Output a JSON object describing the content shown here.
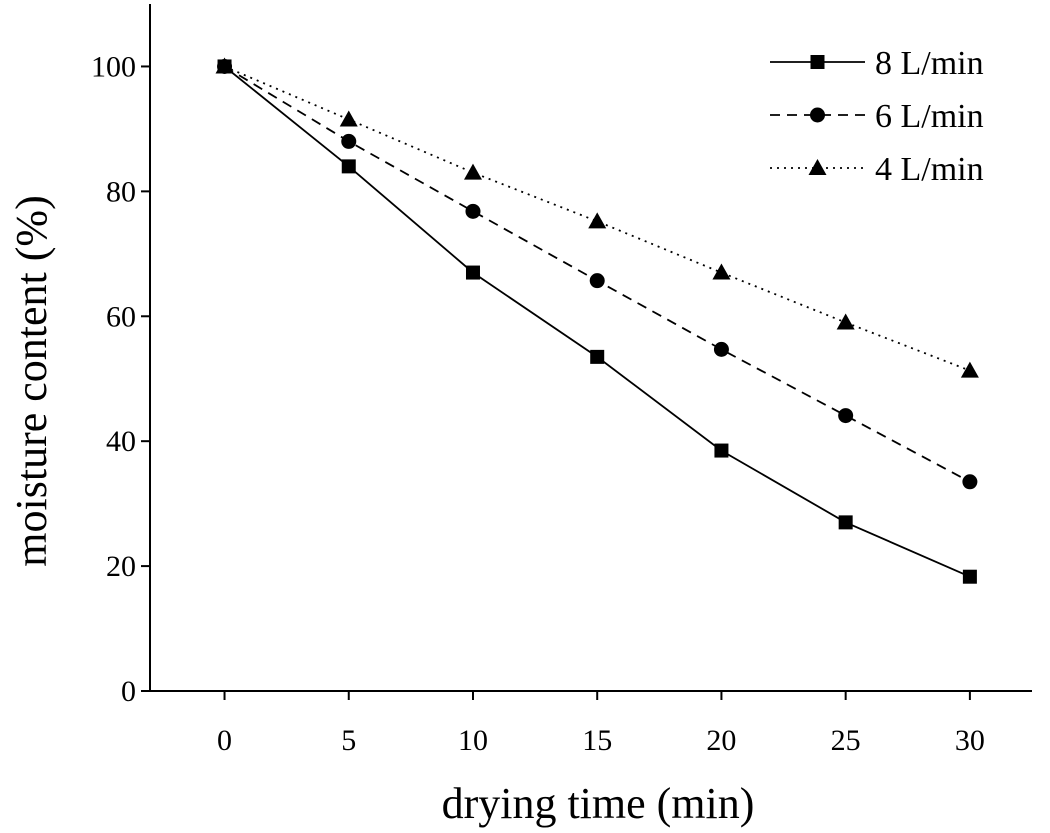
{
  "chart_data": {
    "type": "line",
    "title": "",
    "xlabel": "drying time (min)",
    "ylabel": "moisture content (%)",
    "x": [
      0,
      5,
      10,
      15,
      20,
      25,
      30
    ],
    "xlim": [
      -3,
      32.5
    ],
    "ylim": [
      0,
      110
    ],
    "xticks": [
      0,
      5,
      10,
      15,
      20,
      25,
      30
    ],
    "yticks": [
      0,
      20,
      40,
      60,
      80,
      100
    ],
    "grid": false,
    "legend_position": "top-right",
    "series": [
      {
        "name": "8 L/min",
        "marker": "square",
        "line_style": "solid",
        "values": [
          100,
          84,
          67,
          53.5,
          38.5,
          27,
          18.3
        ]
      },
      {
        "name": "6 L/min",
        "marker": "circle",
        "line_style": "dashed",
        "values": [
          100,
          88,
          76.8,
          65.7,
          54.7,
          44.1,
          33.5
        ]
      },
      {
        "name": "4 L/min",
        "marker": "triangle",
        "line_style": "dotted",
        "values": [
          100,
          91.5,
          83,
          75.2,
          67,
          59,
          51.3
        ]
      }
    ]
  }
}
